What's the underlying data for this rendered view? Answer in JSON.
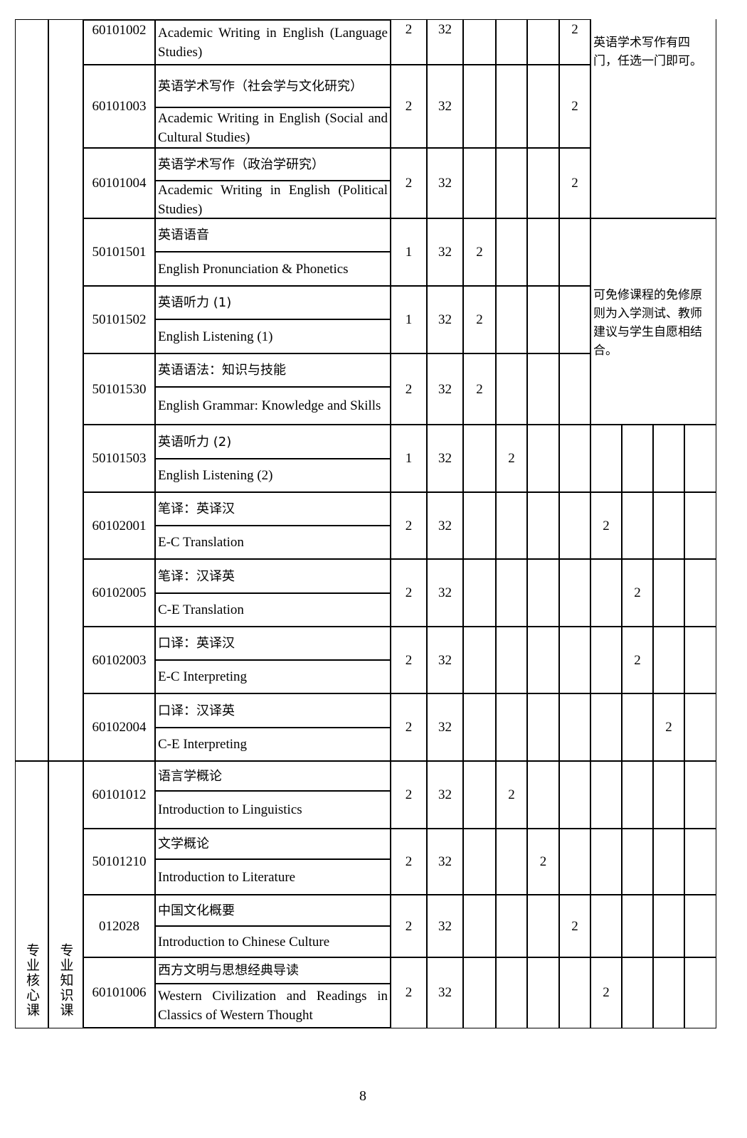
{
  "rows": [
    {
      "code": "60101002",
      "name_en": "Academic Writing in English (Language Studies)",
      "credit": "2",
      "hours": "32",
      "sem": [
        "",
        "",
        "",
        "2",
        "",
        "",
        "",
        ""
      ]
    },
    {
      "code": "60101003",
      "name_cn": "英语学术写作（社会学与文化研究）",
      "name_en": "Academic Writing in English (Social and Cultural Studies)",
      "credit": "2",
      "hours": "32",
      "sem": [
        "",
        "",
        "",
        "2",
        "",
        "",
        "",
        ""
      ]
    },
    {
      "code": "60101004",
      "name_cn": "英语学术写作（政治学研究）",
      "name_en": "Academic Writing in English (Political Studies)",
      "credit": "2",
      "hours": "32",
      "sem": [
        "",
        "",
        "",
        "2",
        "",
        "",
        "",
        ""
      ]
    },
    {
      "code": "50101501",
      "name_cn": "英语语音",
      "name_en": "English Pronunciation & Phonetics",
      "credit": "1",
      "hours": "32",
      "sem": [
        "2",
        "",
        "",
        "",
        "",
        "",
        "",
        ""
      ]
    },
    {
      "code": "50101502",
      "name_cn": "英语听力 (1)",
      "name_en": "English Listening (1)",
      "credit": "1",
      "hours": "32",
      "sem": [
        "2",
        "",
        "",
        "",
        "",
        "",
        "",
        ""
      ]
    },
    {
      "code": "50101530",
      "name_cn": "英语语法：知识与技能",
      "name_en": "English Grammar: Knowledge and Skills",
      "credit": "2",
      "hours": "32",
      "sem": [
        "2",
        "",
        "",
        "",
        "",
        "",
        "",
        ""
      ]
    },
    {
      "code": "50101503",
      "name_cn": "英语听力 (2)",
      "name_en": "English Listening (2)",
      "credit": "1",
      "hours": "32",
      "sem": [
        "",
        "2",
        "",
        "",
        "",
        "",
        "",
        ""
      ]
    },
    {
      "code": "60102001",
      "name_cn": "笔译：英译汉",
      "name_en": "E-C Translation",
      "credit": "2",
      "hours": "32",
      "sem": [
        "",
        "",
        "",
        "",
        "2",
        "",
        "",
        ""
      ]
    },
    {
      "code": "60102005",
      "name_cn": "笔译：汉译英",
      "name_en": "C-E Translation",
      "credit": "2",
      "hours": "32",
      "sem": [
        "",
        "",
        "",
        "",
        "",
        "2",
        "",
        ""
      ]
    },
    {
      "code": "60102003",
      "name_cn": "口译：英译汉",
      "name_en": "E-C Interpreting",
      "credit": "2",
      "hours": "32",
      "sem": [
        "",
        "",
        "",
        "",
        "",
        "2",
        "",
        ""
      ]
    },
    {
      "code": "60102004",
      "name_cn": "口译：汉译英",
      "name_en": "C-E Interpreting",
      "credit": "2",
      "hours": "32",
      "sem": [
        "",
        "",
        "",
        "",
        "",
        "",
        "2",
        ""
      ]
    },
    {
      "code": "60101012",
      "name_cn": "语言学概论",
      "name_en": "Introduction to Linguistics",
      "credit": "2",
      "hours": "32",
      "sem": [
        "",
        "2",
        "",
        "",
        "",
        "",
        "",
        ""
      ]
    },
    {
      "code": "50101210",
      "name_cn": "文学概论",
      "name_en": "Introduction to Literature",
      "credit": "2",
      "hours": "32",
      "sem": [
        "",
        "",
        "2",
        "",
        "",
        "",
        "",
        ""
      ]
    },
    {
      "code": "012028",
      "name_cn": "中国文化概要",
      "name_en": "Introduction to Chinese Culture",
      "credit": "2",
      "hours": "32",
      "sem": [
        "",
        "",
        "",
        "2",
        "",
        "",
        "",
        ""
      ]
    },
    {
      "code": "60101006",
      "name_cn": "西方文明与思想经典导读",
      "name_en": "Western Civilization and Readings in Classics of Western Thought",
      "credit": "2",
      "hours": "32",
      "sem": [
        "",
        "",
        "",
        "",
        "2",
        "",
        "",
        ""
      ]
    }
  ],
  "notes": {
    "academic_writing": "英语学术写作有四门，任选一门即可。",
    "exemption": "可免修课程的免修原则为入学测试、教师建议与学生自愿相结合。"
  },
  "categories": {
    "group1": "",
    "group1_sub": "",
    "group2": "专业核心课",
    "group2_sub": "专业知识课"
  },
  "page_number": "8"
}
